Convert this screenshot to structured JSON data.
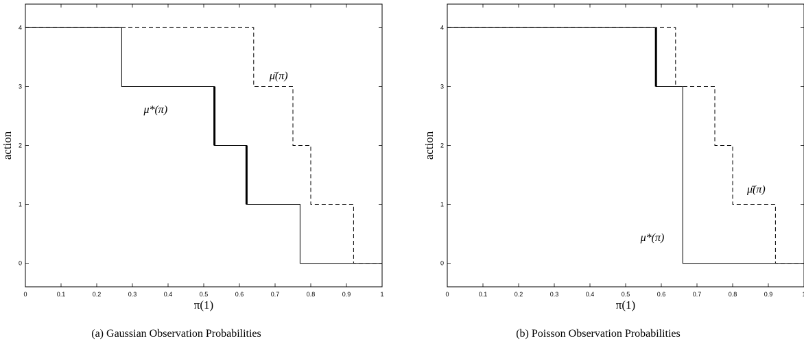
{
  "chart_data": [
    {
      "type": "line",
      "caption": "(a) Gaussian Observation Probabilities",
      "xlabel": "π(1)",
      "ylabel": "action",
      "xlim": [
        0,
        1
      ],
      "ylim": [
        -0.4,
        4.4
      ],
      "xticks": [
        "0",
        "0.1",
        "0.2",
        "0.3",
        "0.4",
        "0.5",
        "0.6",
        "0.7",
        "0.8",
        "0.9",
        "1"
      ],
      "yticks": [
        "0",
        "1",
        "2",
        "3",
        "4"
      ],
      "grid": false,
      "series": [
        {
          "name": "μ*(π)",
          "style": "solid",
          "points": [
            [
              0,
              4
            ],
            [
              0.27,
              4
            ],
            [
              0.27,
              3
            ],
            [
              0.53,
              3
            ],
            [
              0.53,
              2
            ],
            [
              0.62,
              2
            ],
            [
              0.62,
              1
            ],
            [
              0.77,
              1
            ],
            [
              0.77,
              0
            ],
            [
              1,
              0
            ]
          ],
          "thick_segments": [
            [
              [
                0.53,
                3
              ],
              [
                0.53,
                2
              ]
            ],
            [
              [
                0.62,
                2
              ],
              [
                0.62,
                1
              ]
            ]
          ]
        },
        {
          "name": "μ̄(π)",
          "style": "dashed",
          "points": [
            [
              0,
              4
            ],
            [
              0.64,
              4
            ],
            [
              0.64,
              3
            ],
            [
              0.75,
              3
            ],
            [
              0.75,
              2
            ],
            [
              0.8,
              2
            ],
            [
              0.8,
              1
            ],
            [
              0.92,
              1
            ],
            [
              0.92,
              0
            ],
            [
              1,
              0
            ]
          ],
          "thick_segments": []
        }
      ],
      "annotations": [
        {
          "text": "μ*(π)",
          "x": 0.365,
          "y": 2.55
        },
        {
          "text": "μ̄(π)",
          "x": 0.71,
          "y": 3.13
        }
      ]
    },
    {
      "type": "line",
      "caption": "(b) Poisson Observation Probabilities",
      "xlabel": "π(1)",
      "ylabel": "action",
      "xlim": [
        0,
        1
      ],
      "ylim": [
        -0.4,
        4.4
      ],
      "xticks": [
        "0",
        "0.1",
        "0.2",
        "0.3",
        "0.4",
        "0.5",
        "0.6",
        "0.7",
        "0.8",
        "0.9",
        "1"
      ],
      "yticks": [
        "0",
        "1",
        "2",
        "3",
        "4"
      ],
      "grid": false,
      "series": [
        {
          "name": "μ*(π)",
          "style": "solid",
          "points": [
            [
              0,
              4
            ],
            [
              0.585,
              4
            ],
            [
              0.585,
              3
            ],
            [
              0.66,
              3
            ],
            [
              0.66,
              0
            ],
            [
              1,
              0
            ]
          ],
          "thick_segments": [
            [
              [
                0.585,
                4
              ],
              [
                0.585,
                3
              ]
            ]
          ]
        },
        {
          "name": "μ̄(π)",
          "style": "dashed",
          "points": [
            [
              0,
              4
            ],
            [
              0.64,
              4
            ],
            [
              0.64,
              3
            ],
            [
              0.75,
              3
            ],
            [
              0.75,
              2
            ],
            [
              0.8,
              2
            ],
            [
              0.8,
              1
            ],
            [
              0.92,
              1
            ],
            [
              0.92,
              0
            ],
            [
              1,
              0
            ]
          ],
          "thick_segments": []
        }
      ],
      "annotations": [
        {
          "text": "μ*(π)",
          "x": 0.575,
          "y": 0.38
        },
        {
          "text": "μ̄(π)",
          "x": 0.866,
          "y": 1.2
        }
      ]
    }
  ]
}
